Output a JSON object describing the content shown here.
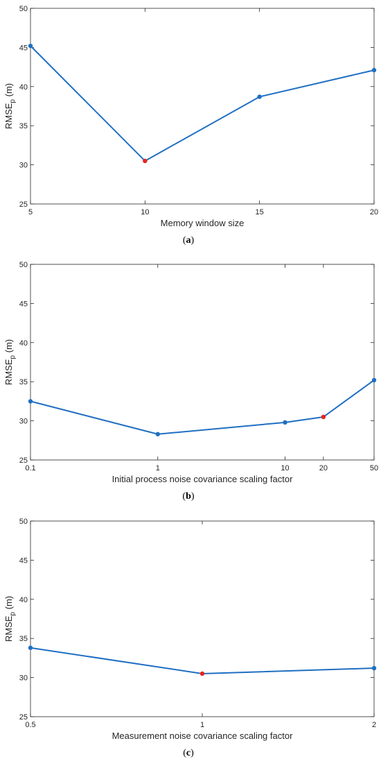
{
  "colors": {
    "line": "#1f6fc2",
    "marker": "#1f6fc2",
    "highlight": "#e8241e",
    "axis": "#262626"
  },
  "chart_data": [
    {
      "type": "line",
      "panel": "(a)",
      "caption_letter": "a",
      "xscale": "linear",
      "x": [
        5,
        10,
        15,
        20
      ],
      "y": [
        45.2,
        30.5,
        38.7,
        42.1
      ],
      "highlight_index": 1,
      "xticks": [
        5,
        10,
        15,
        20
      ],
      "xticklabels": [
        "5",
        "10",
        "15",
        "20"
      ],
      "yticks": [
        25,
        30,
        35,
        40,
        45,
        50
      ],
      "yticklabels": [
        "25",
        "30",
        "35",
        "40",
        "45",
        "50"
      ],
      "xlim": [
        5,
        20
      ],
      "ylim": [
        25,
        50
      ],
      "xlabel": "Memory window size",
      "ylabel_main": "RMSE",
      "ylabel_sub": "p",
      "ylabel_unit": " (m)",
      "grid": false,
      "legend": false
    },
    {
      "type": "line",
      "panel": "(b)",
      "caption_letter": "b",
      "xscale": "log",
      "x": [
        0.1,
        1,
        10,
        20,
        50
      ],
      "y": [
        32.5,
        28.3,
        29.8,
        30.5,
        35.2
      ],
      "highlight_index": 3,
      "xticks": [
        0.1,
        1,
        10,
        20,
        50
      ],
      "xticklabels": [
        "0.1",
        "1",
        "10",
        "20",
        "50"
      ],
      "yticks": [
        25,
        30,
        35,
        40,
        45,
        50
      ],
      "yticklabels": [
        "25",
        "30",
        "35",
        "40",
        "45",
        "50"
      ],
      "xlim": [
        0.1,
        50
      ],
      "ylim": [
        25,
        50
      ],
      "xlabel": "Initial process noise covariance scaling factor",
      "ylabel_main": "RMSE",
      "ylabel_sub": "p",
      "ylabel_unit": " (m)",
      "grid": false,
      "legend": false
    },
    {
      "type": "line",
      "panel": "(c)",
      "caption_letter": "c",
      "xscale": "log",
      "x": [
        0.5,
        1,
        2
      ],
      "y": [
        33.8,
        30.5,
        31.2
      ],
      "highlight_index": 1,
      "xticks": [
        0.5,
        1,
        2
      ],
      "xticklabels": [
        "0.5",
        "1",
        "2"
      ],
      "yticks": [
        25,
        30,
        35,
        40,
        45,
        50
      ],
      "yticklabels": [
        "25",
        "30",
        "35",
        "40",
        "45",
        "50"
      ],
      "xlim": [
        0.5,
        2
      ],
      "ylim": [
        25,
        50
      ],
      "xlabel": "Measurement noise covariance scaling factor",
      "ylabel_main": "RMSE",
      "ylabel_sub": "p",
      "ylabel_unit": " (m)",
      "grid": false,
      "legend": false
    }
  ]
}
